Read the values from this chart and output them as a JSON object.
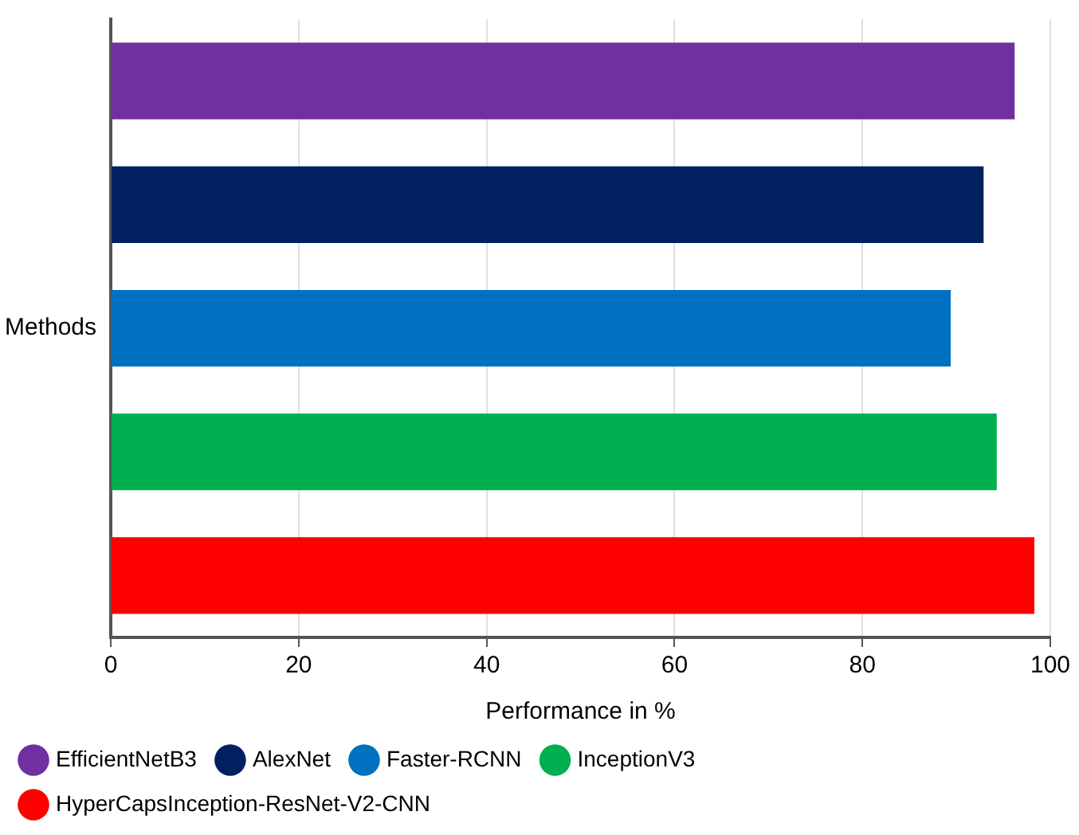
{
  "chart_data": {
    "type": "bar",
    "orientation": "horizontal",
    "xlabel": "Performance in %",
    "categories": [
      "Methods"
    ],
    "series": [
      {
        "name": "EfficientNetB3",
        "color": "#7030a0",
        "values": [
          96.2
        ]
      },
      {
        "name": "AlexNet",
        "color": "#002060",
        "values": [
          92.9
        ]
      },
      {
        "name": "Faster-RCNN",
        "color": "#0070c0",
        "values": [
          89.4
        ]
      },
      {
        "name": "InceptionV3",
        "color": "#00b050",
        "values": [
          94.3
        ]
      },
      {
        "name": "HyperCapsInception-ResNet-V2-CNN",
        "color": "#ff0000",
        "values": [
          98.3
        ]
      }
    ],
    "xlim": [
      0,
      100
    ],
    "xticks": [
      0,
      20,
      40,
      60,
      80,
      100
    ],
    "grid": "x",
    "legend": "bottom"
  }
}
